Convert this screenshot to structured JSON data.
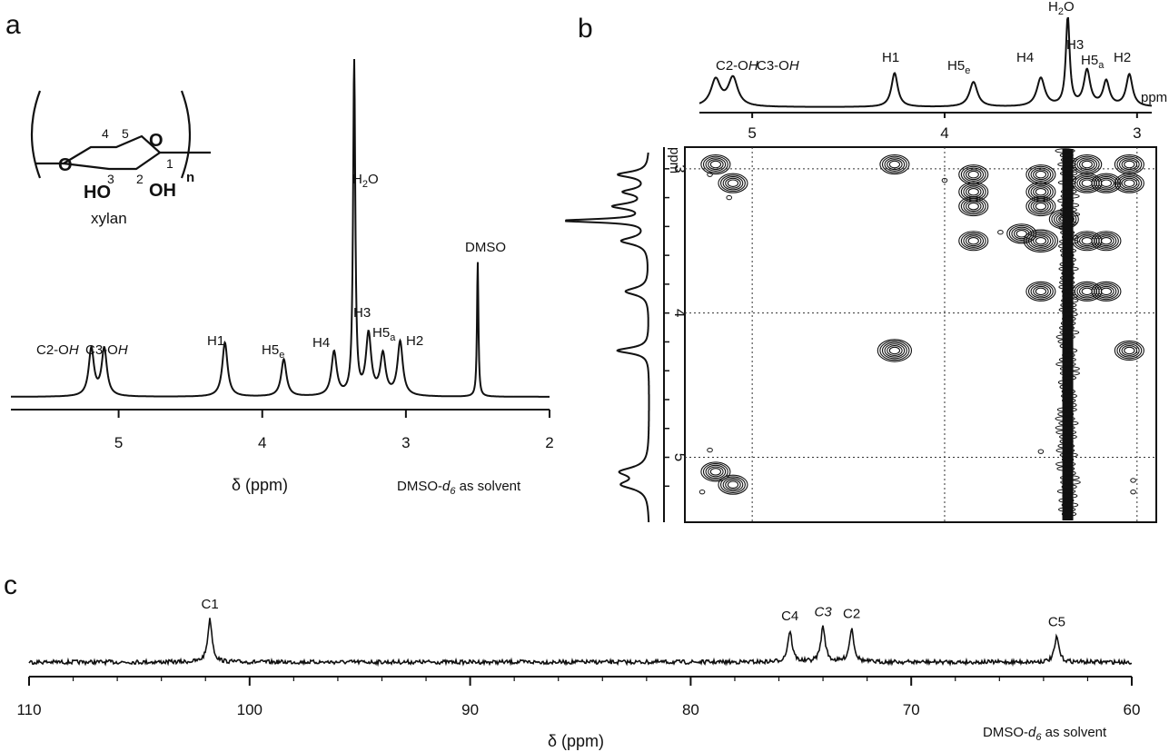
{
  "panels": {
    "a": "a",
    "b": "b",
    "c": "c"
  },
  "structure": {
    "name": "xylan",
    "subscript_n": "n",
    "HO": "HO",
    "OH": "OH",
    "O_chain": "O",
    "O_ring": "O",
    "pos": {
      "one": "1",
      "two": "2",
      "three": "3",
      "four": "4",
      "five": "5"
    }
  },
  "chart_data": [
    {
      "panel": "a",
      "type": "line",
      "xlabel": "δ (ppm)",
      "solvent_note": {
        "prefix": "DMSO-",
        "d": "d",
        "six": "6",
        "suffix": " as solvent"
      },
      "xlim": [
        5.75,
        2.0
      ],
      "xticks": [
        "5",
        "4",
        "3",
        "2"
      ],
      "xtick_values": [
        5,
        4,
        3,
        2
      ],
      "peaks": [
        {
          "shift": 5.19,
          "rel_height": 0.14,
          "label": "C2-OH"
        },
        {
          "shift": 5.1,
          "rel_height": 0.14,
          "label": "C3-OH"
        },
        {
          "shift": 4.26,
          "rel_height": 0.16,
          "label": "H1"
        },
        {
          "shift": 3.85,
          "rel_height": 0.11,
          "label": "H5e"
        },
        {
          "shift": 3.5,
          "rel_height": 0.13,
          "label": "H4"
        },
        {
          "shift": 3.36,
          "rel_height": 1.0,
          "label": "H2O"
        },
        {
          "shift": 3.26,
          "rel_height": 0.18,
          "label": "H3"
        },
        {
          "shift": 3.16,
          "rel_height": 0.12,
          "label": "H5a"
        },
        {
          "shift": 3.04,
          "rel_height": 0.16,
          "label": "H2"
        },
        {
          "shift": 2.5,
          "rel_height": 0.4,
          "label": "DMSO"
        }
      ],
      "labels": {
        "c2oh_a": "C2-O",
        "c2oh_b": "H",
        "c3oh_a": "C3-O",
        "c3oh_b": "H",
        "h1": "H1",
        "h5e": "H5",
        "e": "e",
        "h4": "H4",
        "h2o_a": "H",
        "h2o_2": "2",
        "h2o_b": "O",
        "h3": "H3",
        "h5a": "H5",
        "a": "a",
        "h2": "H2",
        "dmso": "DMSO"
      }
    },
    {
      "panel": "b",
      "type": "heatmap",
      "xlim": [
        5.35,
        2.9
      ],
      "ylim": [
        2.85,
        5.45
      ],
      "axis_unit_top": "ppm",
      "axis_unit_left": "ppm",
      "xticks": [
        "5",
        "4",
        "3"
      ],
      "xtick_values": [
        5,
        4,
        3
      ],
      "yticks": [
        "3",
        "4",
        "5"
      ],
      "ytick_values": [
        3,
        4,
        5
      ],
      "top_labels": {
        "c2oh_a": "C2-O",
        "c2oh_b": "H",
        "c3oh_a": "C3-O",
        "c3oh_b": "H",
        "h1": "H1",
        "h5e": "H5",
        "e": "e",
        "h4": "H4",
        "h2o_a": "H",
        "h2o_2": "2",
        "h2o_b": "O",
        "h3": "H3",
        "h5a": "H5",
        "a": "a",
        "h2": "H2"
      },
      "cross_peaks": [
        [
          5.19,
          2.97
        ],
        [
          5.1,
          3.1
        ],
        [
          5.19,
          5.1
        ],
        [
          5.1,
          5.19
        ],
        [
          4.26,
          2.97
        ],
        [
          4.26,
          4.26
        ],
        [
          3.85,
          3.04
        ],
        [
          3.85,
          3.26
        ],
        [
          3.85,
          3.5
        ],
        [
          3.85,
          3.16
        ],
        [
          3.5,
          3.04
        ],
        [
          3.5,
          3.26
        ],
        [
          3.5,
          3.5
        ],
        [
          3.5,
          3.16
        ],
        [
          3.5,
          3.85
        ],
        [
          3.26,
          2.97
        ],
        [
          3.26,
          3.1
        ],
        [
          3.26,
          3.5
        ],
        [
          3.26,
          3.85
        ],
        [
          3.16,
          3.1
        ],
        [
          3.16,
          3.5
        ],
        [
          3.16,
          3.85
        ],
        [
          3.04,
          2.97
        ],
        [
          3.04,
          3.1
        ],
        [
          3.04,
          4.26
        ],
        [
          3.6,
          3.45
        ],
        [
          3.38,
          3.35
        ]
      ],
      "water_line_shift": 3.36
    },
    {
      "panel": "c",
      "type": "line",
      "xlabel": "δ (ppm)",
      "solvent_note": {
        "prefix": "DMSO-",
        "d": "d",
        "six": "6",
        "suffix": " as solvent"
      },
      "xlim": [
        110,
        60
      ],
      "xticks": [
        "110",
        "100",
        "90",
        "80",
        "70",
        "60"
      ],
      "xtick_values": [
        110,
        100,
        90,
        80,
        70,
        60
      ],
      "peaks": [
        {
          "shift": 101.8,
          "rel_height": 1.0,
          "label": "C1"
        },
        {
          "shift": 75.5,
          "rel_height": 0.72,
          "label": "C4"
        },
        {
          "shift": 74.0,
          "rel_height": 0.82,
          "label": "C3"
        },
        {
          "shift": 72.7,
          "rel_height": 0.78,
          "label": "C2"
        },
        {
          "shift": 63.4,
          "rel_height": 0.58,
          "label": "C5"
        }
      ]
    }
  ]
}
